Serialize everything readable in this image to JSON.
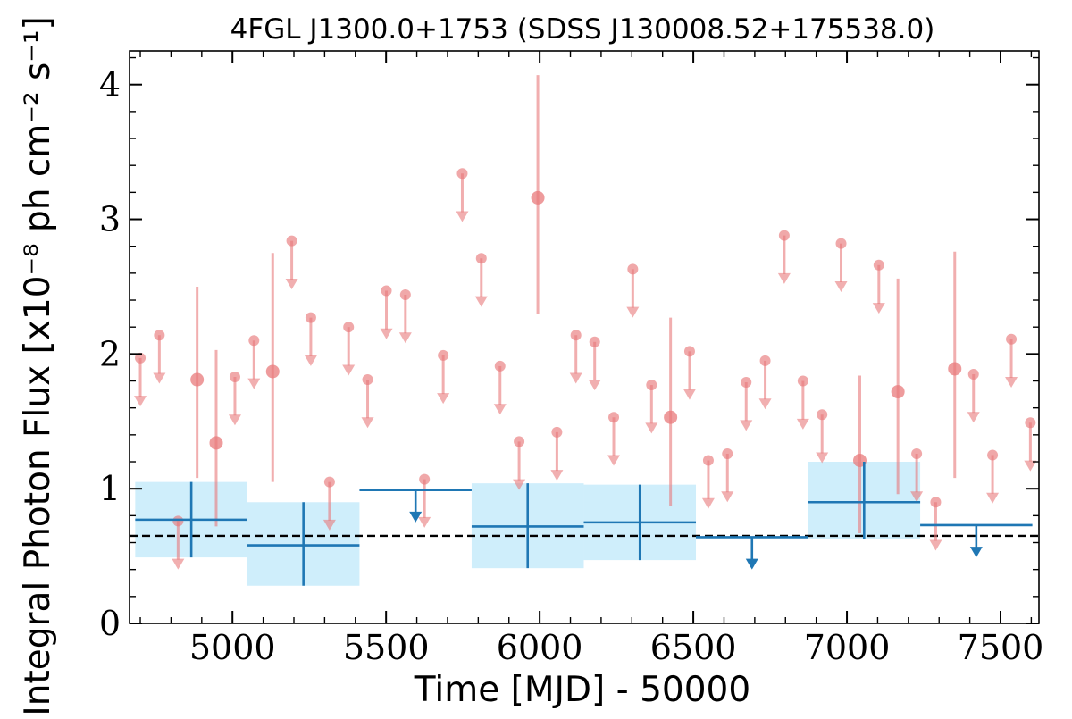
{
  "chart_data": {
    "type": "scatter",
    "title": "4FGL J1300.0+1753 (SDSS J130008.52+175538.0)",
    "xlabel": "Time [MJD] - 50000",
    "ylabel": "Integral Photon Flux [x10⁻⁸ ph cm⁻² s⁻¹]",
    "xlim": [
      4665,
      7625
    ],
    "ylim": [
      0,
      4.25
    ],
    "x_ticks": [
      5000,
      5500,
      6000,
      6500,
      7000,
      7500
    ],
    "x_tick_labels": [
      "5000",
      "5500",
      "6000",
      "6500",
      "7000",
      "7500"
    ],
    "y_ticks": [
      0,
      1,
      2,
      3,
      4
    ],
    "y_tick_labels": [
      "0",
      "1",
      "2",
      "3",
      "4"
    ],
    "grid": false,
    "legend": "none",
    "colors": {
      "short_bins": "#e8797b",
      "long_bins": "#1f77b4",
      "long_bins_band": "#cfeefb",
      "mean_line": "#000000"
    },
    "mean_flux": 0.65,
    "series": [
      {
        "bin_width": 61,
        "upper_limits": [
          {
            "x": 4700,
            "y": 1.97
          },
          {
            "x": 4762,
            "y": 2.14
          },
          {
            "x": 4823,
            "y": 0.76
          },
          {
            "x": 5008,
            "y": 1.83
          },
          {
            "x": 5070,
            "y": 2.1
          },
          {
            "x": 5193,
            "y": 2.84
          },
          {
            "x": 5255,
            "y": 2.27
          },
          {
            "x": 5316,
            "y": 1.05
          },
          {
            "x": 5378,
            "y": 2.2
          },
          {
            "x": 5440,
            "y": 1.81
          },
          {
            "x": 5501,
            "y": 2.47
          },
          {
            "x": 5563,
            "y": 2.44
          },
          {
            "x": 5625,
            "y": 1.07
          },
          {
            "x": 5686,
            "y": 1.99
          },
          {
            "x": 5748,
            "y": 3.34
          },
          {
            "x": 5810,
            "y": 2.71
          },
          {
            "x": 5871,
            "y": 1.91
          },
          {
            "x": 5933,
            "y": 1.35
          },
          {
            "x": 6056,
            "y": 1.42
          },
          {
            "x": 6118,
            "y": 2.14
          },
          {
            "x": 6179,
            "y": 2.09
          },
          {
            "x": 6241,
            "y": 1.53
          },
          {
            "x": 6303,
            "y": 2.63
          },
          {
            "x": 6364,
            "y": 1.77
          },
          {
            "x": 6488,
            "y": 2.02
          },
          {
            "x": 6549,
            "y": 1.21
          },
          {
            "x": 6611,
            "y": 1.26
          },
          {
            "x": 6672,
            "y": 1.79
          },
          {
            "x": 6734,
            "y": 1.95
          },
          {
            "x": 6796,
            "y": 2.88
          },
          {
            "x": 6857,
            "y": 1.8
          },
          {
            "x": 6919,
            "y": 1.55
          },
          {
            "x": 6981,
            "y": 2.82
          },
          {
            "x": 7104,
            "y": 2.66
          },
          {
            "x": 7227,
            "y": 1.26
          },
          {
            "x": 7289,
            "y": 0.9
          },
          {
            "x": 7412,
            "y": 1.85
          },
          {
            "x": 7474,
            "y": 1.25
          },
          {
            "x": 7535,
            "y": 2.11
          },
          {
            "x": 7597,
            "y": 1.49
          }
        ],
        "detections": [
          {
            "x": 4885,
            "y": 1.81,
            "err_low": 1.08,
            "err_high": 2.5
          },
          {
            "x": 4947,
            "y": 1.34,
            "err_low": 0.72,
            "err_high": 2.03
          },
          {
            "x": 5131,
            "y": 1.87,
            "err_low": 1.05,
            "err_high": 2.75
          },
          {
            "x": 5994,
            "y": 3.16,
            "err_low": 2.3,
            "err_high": 4.07
          },
          {
            "x": 6426,
            "y": 1.53,
            "err_low": 0.87,
            "err_high": 2.27
          },
          {
            "x": 7042,
            "y": 1.21,
            "err_low": 0.67,
            "err_high": 1.84
          },
          {
            "x": 7166,
            "y": 1.72,
            "err_low": 0.96,
            "err_high": 2.56
          },
          {
            "x": 7351,
            "y": 1.89,
            "err_low": 1.08,
            "err_high": 2.76
          }
        ]
      },
      {
        "bin_width": 365,
        "detections": [
          {
            "x": 4866,
            "y": 0.77,
            "err_low": 0.49,
            "err_high": 1.05
          },
          {
            "x": 5231,
            "y": 0.58,
            "err_low": 0.28,
            "err_high": 0.9
          },
          {
            "x": 5961,
            "y": 0.72,
            "err_low": 0.41,
            "err_high": 1.04
          },
          {
            "x": 6326,
            "y": 0.75,
            "err_low": 0.47,
            "err_high": 1.03
          },
          {
            "x": 7056,
            "y": 0.9,
            "err_low": 0.63,
            "err_high": 1.2
          }
        ],
        "upper_limits": [
          {
            "x": 5596,
            "y": 0.99
          },
          {
            "x": 6691,
            "y": 0.64
          },
          {
            "x": 7421,
            "y": 0.73
          }
        ]
      }
    ]
  }
}
